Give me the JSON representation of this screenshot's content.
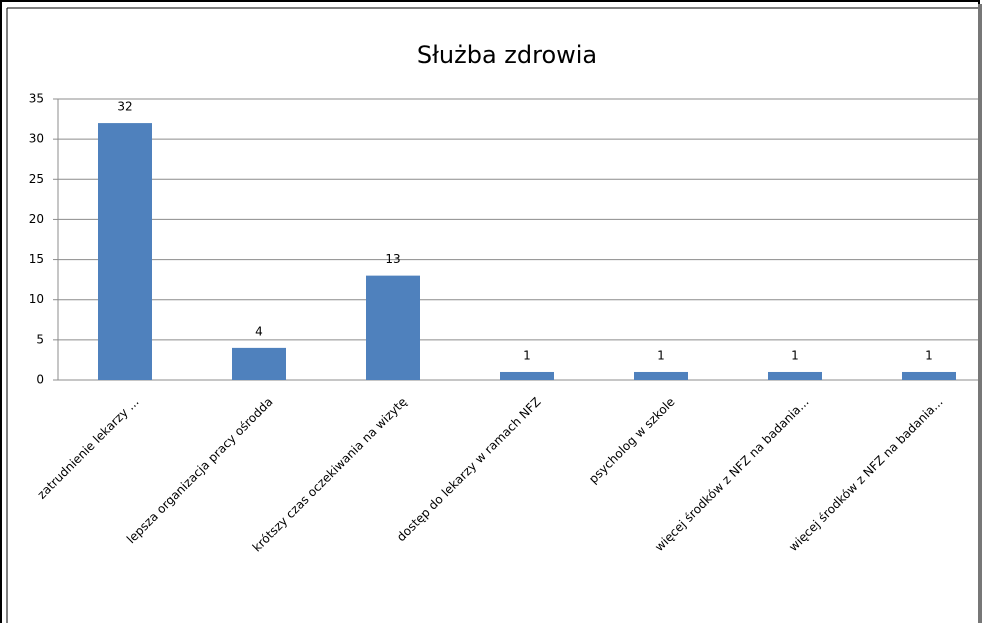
{
  "chart_data": {
    "type": "bar",
    "title": "Służba zdrowia",
    "categories": [
      "zatrudnienie lekarzy ...",
      "lepsza organizacja pracy ośrodda",
      "krótszy czas oczekiwania na wizytę",
      "dostęp do lekarzy w ramach NFZ",
      "psycholog w szkole",
      "więcej środków z NFZ na badania...",
      "więcej środków z NFZ na badania..."
    ],
    "values": [
      32,
      4,
      13,
      1,
      1,
      1,
      1
    ],
    "color": "#4f81bd",
    "ylim": [
      0,
      35
    ],
    "yticks": [
      0,
      5,
      10,
      15,
      20,
      25,
      30,
      35
    ],
    "grid": true
  }
}
